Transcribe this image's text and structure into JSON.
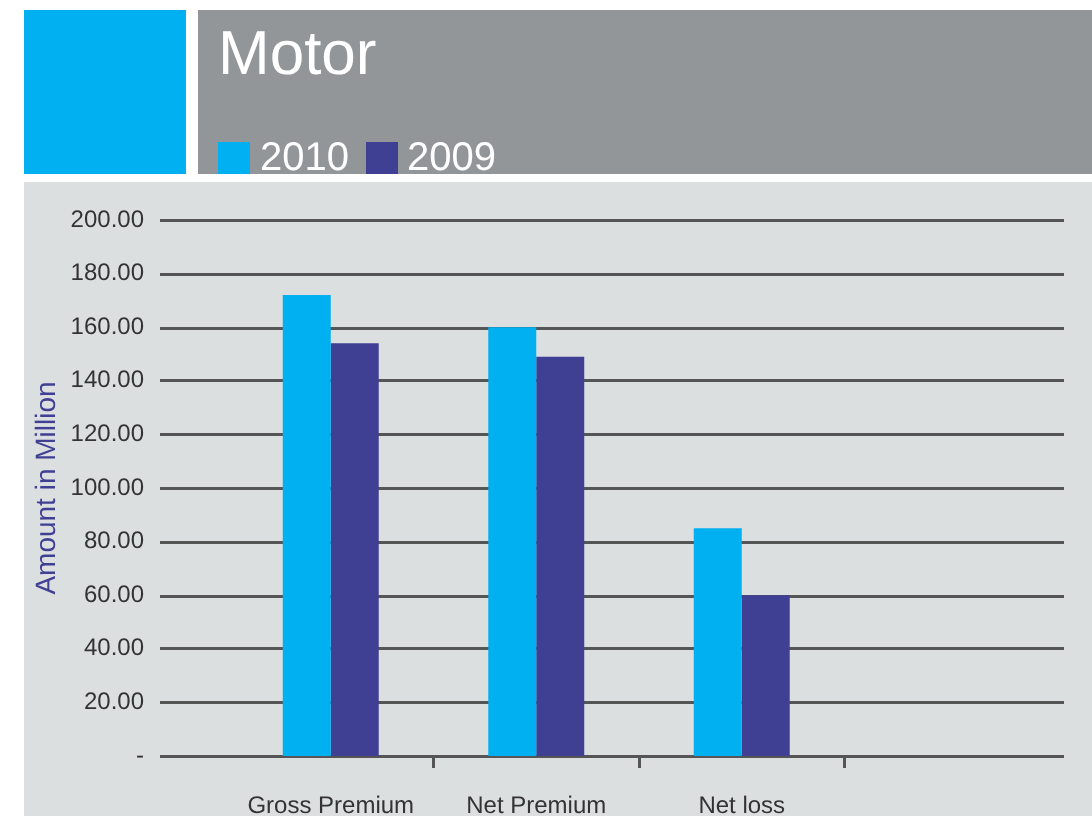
{
  "chart_data": {
    "type": "bar",
    "title": "Motor",
    "ylabel": "Amount in Million",
    "categories": [
      "Gross Premium",
      "Net Premium",
      "Net loss",
      null
    ],
    "series": [
      {
        "name": "2010",
        "color": "#00b0f0",
        "values": [
          172,
          160,
          85,
          null
        ]
      },
      {
        "name": "2009",
        "color": "#3f3f94",
        "values": [
          154,
          149,
          60,
          null
        ]
      }
    ],
    "ylim": [
      0,
      200
    ],
    "yticks": [
      {
        "value": 0,
        "label": "-"
      },
      {
        "value": 20,
        "label": "20.00"
      },
      {
        "value": 40,
        "label": "40.00"
      },
      {
        "value": 60,
        "label": "60.00"
      },
      {
        "value": 80,
        "label": "80.00"
      },
      {
        "value": 100,
        "label": "100.00"
      },
      {
        "value": 120,
        "label": "120.00"
      },
      {
        "value": 140,
        "label": "140.00"
      },
      {
        "value": 160,
        "label": "160.00"
      },
      {
        "value": 180,
        "label": "180.00"
      },
      {
        "value": 200,
        "label": "200.00"
      }
    ],
    "grid": "y",
    "legend": "top left"
  }
}
